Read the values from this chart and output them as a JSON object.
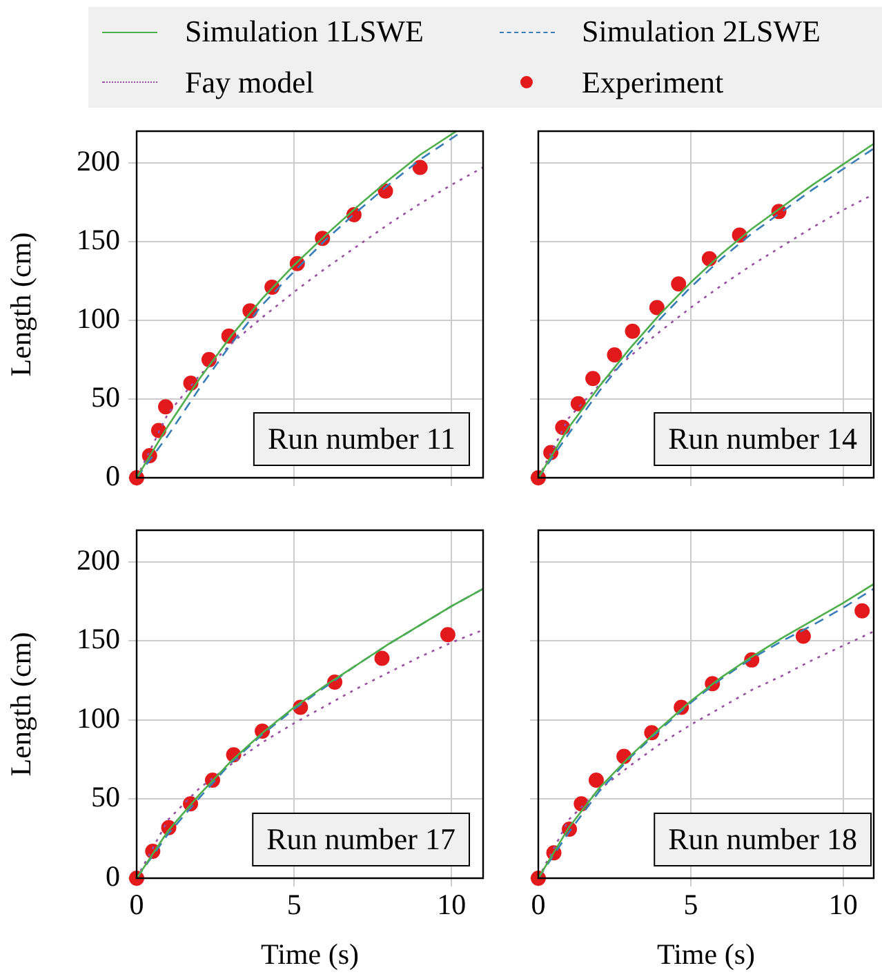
{
  "chart_data": [
    {
      "type": "line",
      "ylabel": "Length (cm)",
      "xlim": [
        0,
        11
      ],
      "xticks": [
        0,
        5,
        10
      ],
      "ylim": [
        0,
        220
      ],
      "yticks": [
        0,
        50,
        100,
        150,
        200
      ],
      "grid": true,
      "legend": "top",
      "tick_labels": "y",
      "annotations": [
        "Run number 11"
      ],
      "series": [
        {
          "name": "Simulation 1LSWE",
          "color": "#4daf4a",
          "line_style": "solid",
          "marker": "none",
          "x": [
            0,
            1,
            2,
            3,
            4,
            5,
            6,
            7,
            8,
            9,
            10.15
          ],
          "values": [
            0,
            33,
            63,
            90,
            114,
            135,
            154,
            172,
            189,
            205,
            220
          ]
        },
        {
          "name": "Simulation 2LSWE",
          "color": "#377eb8",
          "line_style": "dashed",
          "marker": "none",
          "x": [
            0,
            1,
            2,
            3,
            4,
            5,
            6,
            7,
            8,
            9,
            10.35
          ],
          "values": [
            0,
            27,
            57,
            85,
            110,
            131,
            151,
            169,
            186,
            202,
            220
          ]
        },
        {
          "name": "Fay model",
          "color": "#984ea3",
          "line_style": "dotted",
          "marker": "none",
          "x": [
            0,
            1,
            2,
            3,
            4,
            5,
            6,
            7,
            8,
            9,
            10,
            11
          ],
          "values": [
            0,
            41,
            65,
            85,
            102,
            118,
            133,
            147,
            161,
            174,
            186,
            197
          ]
        },
        {
          "name": "Experiment",
          "type": "scatter",
          "color": "#e31a1c",
          "marker": "circle",
          "x": [
            0,
            0.41,
            0.7,
            0.92,
            1.72,
            2.3,
            2.93,
            3.6,
            4.3,
            5.1,
            5.9,
            6.9,
            7.9,
            9.0
          ],
          "values": [
            0,
            14,
            30,
            45,
            60,
            75,
            90,
            106,
            121,
            136,
            152,
            167,
            182,
            197
          ]
        }
      ]
    },
    {
      "type": "line",
      "xlim": [
        0,
        11
      ],
      "xticks": [
        0,
        5,
        10
      ],
      "ylim": [
        0,
        220
      ],
      "yticks": [
        0,
        50,
        100,
        150,
        200
      ],
      "grid": true,
      "tick_labels": false,
      "annotations": [
        "Run number 14"
      ],
      "series": [
        {
          "color": "#4daf4a",
          "line_style": "solid",
          "marker": "none",
          "x": [
            0,
            1,
            2,
            3,
            4,
            5,
            6,
            7,
            8,
            9,
            10,
            11
          ],
          "values": [
            0,
            32,
            58,
            82,
            104,
            124,
            142,
            158,
            172,
            186,
            199,
            212
          ]
        },
        {
          "color": "#377eb8",
          "line_style": "dashed",
          "marker": "none",
          "x": [
            0,
            1,
            2,
            3,
            4,
            5,
            6,
            7,
            8,
            9,
            10,
            11
          ],
          "values": [
            0,
            28,
            55,
            79,
            101,
            121,
            139,
            155,
            169,
            183,
            196,
            209
          ]
        },
        {
          "color": "#984ea3",
          "line_style": "dotted",
          "marker": "none",
          "x": [
            0,
            1,
            2,
            3,
            4,
            5,
            6,
            7,
            8,
            9,
            10,
            11
          ],
          "values": [
            0,
            38,
            59,
            77,
            93,
            108,
            122,
            135,
            147,
            159,
            170,
            180
          ]
        },
        {
          "type": "scatter",
          "color": "#e31a1c",
          "marker": "circle",
          "x": [
            0,
            0.41,
            0.8,
            1.31,
            1.79,
            2.5,
            3.09,
            3.89,
            4.6,
            5.61,
            6.6,
            7.89
          ],
          "values": [
            0,
            16,
            32,
            47,
            63,
            78,
            93,
            108,
            123,
            139,
            154,
            169
          ]
        }
      ]
    },
    {
      "type": "line",
      "xlabel": "Time (s)",
      "ylabel": "Length (cm)",
      "xlim": [
        0,
        11
      ],
      "xticks": [
        0,
        5,
        10
      ],
      "ylim": [
        0,
        220
      ],
      "yticks": [
        0,
        50,
        100,
        150,
        200
      ],
      "grid": true,
      "annotations": [
        "Run number 17"
      ],
      "series": [
        {
          "color": "#4daf4a",
          "line_style": "solid",
          "marker": "none",
          "x": [
            0,
            1,
            2,
            3,
            4,
            5,
            6,
            7,
            8,
            9,
            10,
            11
          ],
          "values": [
            0,
            30,
            53,
            74,
            92,
            108,
            122,
            135,
            148,
            160,
            172,
            183
          ]
        },
        {
          "color": "#377eb8",
          "line_style": "dashed",
          "marker": "none",
          "x": [
            0,
            1,
            2,
            3,
            4,
            5,
            6,
            7,
            8,
            9,
            10,
            11
          ],
          "values": [
            0,
            28,
            51,
            73,
            91,
            107,
            121,
            135,
            148,
            160,
            172,
            183
          ]
        },
        {
          "color": "#984ea3",
          "line_style": "dotted",
          "marker": "none",
          "x": [
            0,
            1,
            2,
            3,
            4,
            5,
            6,
            7,
            8,
            9,
            10,
            11
          ],
          "values": [
            0,
            37,
            57,
            72,
            86,
            98,
            109,
            120,
            130,
            140,
            149,
            157
          ]
        },
        {
          "type": "scatter",
          "color": "#e31a1c",
          "marker": "circle",
          "x": [
            0,
            0.51,
            1.02,
            1.71,
            2.41,
            3.08,
            3.99,
            5.2,
            6.29,
            7.79,
            9.88
          ],
          "values": [
            0,
            17,
            32,
            47,
            62,
            78,
            93,
            108,
            124,
            139,
            154
          ]
        }
      ]
    },
    {
      "type": "line",
      "xlabel": "Time (s)",
      "xlim": [
        0,
        11
      ],
      "xticks": [
        0,
        5,
        10
      ],
      "ylim": [
        0,
        220
      ],
      "yticks": [
        0,
        50,
        100,
        150,
        200
      ],
      "grid": true,
      "tick_labels": "x",
      "annotations": [
        "Run number 18"
      ],
      "series": [
        {
          "color": "#4daf4a",
          "line_style": "solid",
          "marker": "none",
          "x": [
            0,
            1,
            2,
            3,
            4,
            5,
            6,
            7,
            8,
            9,
            10,
            11
          ],
          "values": [
            0,
            32,
            57,
            77,
            95,
            112,
            127,
            140,
            152,
            163,
            174,
            186
          ]
        },
        {
          "color": "#377eb8",
          "line_style": "dashed",
          "marker": "none",
          "x": [
            0,
            1,
            2,
            3,
            4,
            5,
            6,
            7,
            8,
            9,
            10,
            11
          ],
          "values": [
            0,
            29,
            55,
            76,
            94,
            111,
            126,
            139,
            150,
            160,
            171,
            183
          ]
        },
        {
          "color": "#984ea3",
          "line_style": "dotted",
          "marker": "none",
          "x": [
            0,
            1,
            2,
            3,
            4,
            5,
            6,
            7,
            8,
            9,
            10,
            11
          ],
          "values": [
            0,
            37,
            56,
            71,
            85,
            97,
            108,
            119,
            128,
            138,
            147,
            156
          ]
        },
        {
          "type": "scatter",
          "color": "#e31a1c",
          "marker": "circle",
          "x": [
            0,
            0.51,
            1.02,
            1.41,
            1.9,
            2.81,
            3.72,
            4.69,
            5.71,
            7.0,
            8.69,
            10.62
          ],
          "values": [
            0,
            16,
            31,
            47,
            62,
            77,
            92,
            108,
            123,
            138,
            153,
            169
          ]
        }
      ]
    }
  ]
}
